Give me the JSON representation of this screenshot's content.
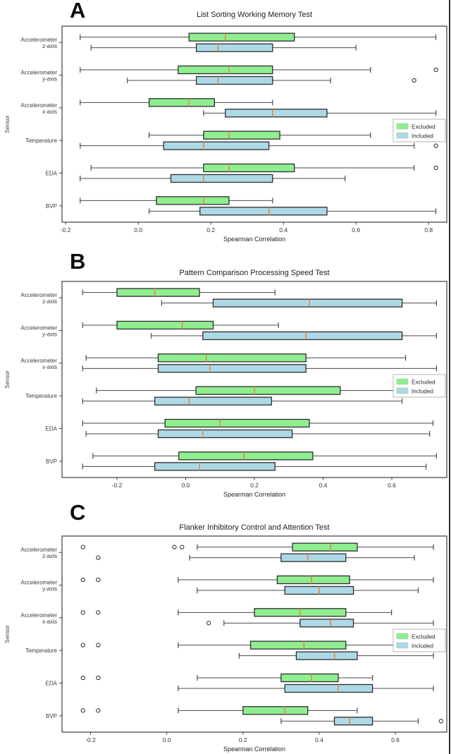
{
  "figure": {
    "description": "Three stacked horizontal grouped boxplot panels comparing Excluded vs Included groups of sensors",
    "panel_labels": [
      "A",
      "B",
      "C"
    ]
  },
  "colors": {
    "excluded_fill": "#90ee90",
    "included_fill": "#add8e6",
    "box_border": "#2d2d2d",
    "median": "#dd8a3c",
    "whisker": "#4a4a4a",
    "axis": "#3c3c3c",
    "legend_border": "#b5b5b5",
    "text": "#2b2b2b"
  },
  "chart_data": [
    {
      "panel_label": "A",
      "type": "boxplot",
      "orientation": "horizontal",
      "title": "List Sorting Working Memory Test",
      "xlabel": "Spearman Correlation",
      "ylabel": "Sensor",
      "xlim": [
        -0.21,
        0.85
      ],
      "xticks": [
        -0.2,
        0.0,
        0.2,
        0.4,
        0.6,
        0.8
      ],
      "xtick_labels": [
        "-0.2",
        "0.0",
        "0.2",
        "0.4",
        "0.6",
        "0.8"
      ],
      "grid": false,
      "categories": [
        [
          "Accelerometer",
          "z-axis"
        ],
        [
          "Accelerometer",
          "y-axis"
        ],
        [
          "Accelerometer",
          "x-axis"
        ],
        [
          "Temperature"
        ],
        [
          "EDA"
        ],
        [
          "BVP"
        ]
      ],
      "legend": {
        "position": "right",
        "entries": [
          "Excluded",
          "Included"
        ]
      },
      "series": [
        {
          "name": "Excluded",
          "color": "#90ee90",
          "boxes": [
            {
              "whislo": -0.16,
              "q1": 0.14,
              "med": 0.24,
              "q3": 0.43,
              "whishi": 0.82,
              "fliers": []
            },
            {
              "whislo": -0.16,
              "q1": 0.11,
              "med": 0.25,
              "q3": 0.37,
              "whishi": 0.64,
              "fliers": [
                0.82
              ]
            },
            {
              "whislo": -0.16,
              "q1": 0.03,
              "med": 0.14,
              "q3": 0.21,
              "whishi": 0.37,
              "fliers": []
            },
            {
              "whislo": 0.03,
              "q1": 0.18,
              "med": 0.25,
              "q3": 0.39,
              "whishi": 0.64,
              "fliers": []
            },
            {
              "whislo": -0.13,
              "q1": 0.18,
              "med": 0.25,
              "q3": 0.43,
              "whishi": 0.76,
              "fliers": [
                0.82
              ]
            },
            {
              "whislo": -0.16,
              "q1": 0.05,
              "med": 0.18,
              "q3": 0.25,
              "whishi": 0.37,
              "fliers": []
            }
          ]
        },
        {
          "name": "Included",
          "color": "#add8e6",
          "boxes": [
            {
              "whislo": -0.13,
              "q1": 0.16,
              "med": 0.22,
              "q3": 0.37,
              "whishi": 0.6,
              "fliers": []
            },
            {
              "whislo": -0.03,
              "q1": 0.16,
              "med": 0.22,
              "q3": 0.37,
              "whishi": 0.53,
              "fliers": [
                0.76
              ]
            },
            {
              "whislo": 0.18,
              "q1": 0.24,
              "med": 0.37,
              "q3": 0.52,
              "whishi": 0.82,
              "fliers": []
            },
            {
              "whislo": -0.16,
              "q1": 0.07,
              "med": 0.18,
              "q3": 0.36,
              "whishi": 0.76,
              "fliers": [
                0.82
              ]
            },
            {
              "whislo": -0.16,
              "q1": 0.09,
              "med": 0.18,
              "q3": 0.37,
              "whishi": 0.57,
              "fliers": []
            },
            {
              "whislo": 0.03,
              "q1": 0.17,
              "med": 0.36,
              "q3": 0.52,
              "whishi": 0.82,
              "fliers": []
            }
          ]
        }
      ]
    },
    {
      "panel_label": "B",
      "type": "boxplot",
      "orientation": "horizontal",
      "title": "Pattern Comparison Processing Speed Test",
      "xlabel": "Spearman Correlation",
      "ylabel": "Sensor",
      "xlim": [
        -0.36,
        0.76
      ],
      "xticks": [
        -0.2,
        0.0,
        0.2,
        0.4,
        0.6
      ],
      "xtick_labels": [
        "-0.2",
        "0.0",
        "0.2",
        "0.4",
        "0.6"
      ],
      "grid": false,
      "categories": [
        [
          "Accelerometer",
          "z-axis"
        ],
        [
          "Accelerometer",
          "y-axis"
        ],
        [
          "Accelerometer",
          "x-axis"
        ],
        [
          "Temperature"
        ],
        [
          "EDA"
        ],
        [
          "BVP"
        ]
      ],
      "legend": {
        "position": "right",
        "entries": [
          "Excluded",
          "Included"
        ]
      },
      "series": [
        {
          "name": "Excluded",
          "color": "#90ee90",
          "boxes": [
            {
              "whislo": -0.3,
              "q1": -0.2,
              "med": -0.09,
              "q3": 0.04,
              "whishi": 0.26,
              "fliers": []
            },
            {
              "whislo": -0.3,
              "q1": -0.2,
              "med": -0.01,
              "q3": 0.08,
              "whishi": 0.27,
              "fliers": []
            },
            {
              "whislo": -0.29,
              "q1": -0.08,
              "med": 0.06,
              "q3": 0.35,
              "whishi": 0.64,
              "fliers": []
            },
            {
              "whislo": -0.26,
              "q1": 0.03,
              "med": 0.2,
              "q3": 0.45,
              "whishi": 0.73,
              "fliers": []
            },
            {
              "whislo": -0.3,
              "q1": -0.06,
              "med": 0.1,
              "q3": 0.36,
              "whishi": 0.72,
              "fliers": []
            },
            {
              "whislo": -0.27,
              "q1": -0.02,
              "med": 0.17,
              "q3": 0.37,
              "whishi": 0.73,
              "fliers": []
            }
          ]
        },
        {
          "name": "Included",
          "color": "#add8e6",
          "boxes": [
            {
              "whislo": -0.07,
              "q1": 0.08,
              "med": 0.36,
              "q3": 0.63,
              "whishi": 0.73,
              "fliers": []
            },
            {
              "whislo": -0.1,
              "q1": 0.05,
              "med": 0.35,
              "q3": 0.63,
              "whishi": 0.73,
              "fliers": []
            },
            {
              "whislo": -0.3,
              "q1": -0.08,
              "med": 0.07,
              "q3": 0.35,
              "whishi": 0.73,
              "fliers": []
            },
            {
              "whislo": -0.3,
              "q1": -0.09,
              "med": 0.01,
              "q3": 0.25,
              "whishi": 0.63,
              "fliers": []
            },
            {
              "whislo": -0.29,
              "q1": -0.08,
              "med": 0.05,
              "q3": 0.31,
              "whishi": 0.71,
              "fliers": []
            },
            {
              "whislo": -0.3,
              "q1": -0.09,
              "med": 0.04,
              "q3": 0.26,
              "whishi": 0.7,
              "fliers": []
            }
          ]
        }
      ]
    },
    {
      "panel_label": "C",
      "type": "boxplot",
      "orientation": "horizontal",
      "title": "Flanker Inhibitory Control and Attention Test",
      "xlabel": "Spearman Correlation",
      "ylabel": "Sensor",
      "xlim": [
        -0.275,
        0.735
      ],
      "xticks": [
        -0.2,
        0.0,
        0.2,
        0.4,
        0.6
      ],
      "xtick_labels": [
        "-0.2",
        "0.0",
        "0.2",
        "0.4",
        "0.6"
      ],
      "grid": false,
      "categories": [
        [
          "Accelerometer",
          "z-axis"
        ],
        [
          "Accelerometer",
          "y-axis"
        ],
        [
          "Accelerometer",
          "x-axis"
        ],
        [
          "Temperature"
        ],
        [
          "EDA"
        ],
        [
          "BVP"
        ]
      ],
      "legend": {
        "position": "right",
        "entries": [
          "Excluded",
          "Included"
        ]
      },
      "series": [
        {
          "name": "Excluded",
          "color": "#90ee90",
          "boxes": [
            {
              "whislo": 0.08,
              "q1": 0.33,
              "med": 0.43,
              "q3": 0.5,
              "whishi": 0.7,
              "fliers": [
                -0.22,
                0.02,
                0.04
              ]
            },
            {
              "whislo": 0.03,
              "q1": 0.29,
              "med": 0.38,
              "q3": 0.48,
              "whishi": 0.7,
              "fliers": [
                -0.22,
                -0.18
              ]
            },
            {
              "whislo": 0.03,
              "q1": 0.23,
              "med": 0.35,
              "q3": 0.47,
              "whishi": 0.59,
              "fliers": [
                -0.22,
                -0.18
              ]
            },
            {
              "whislo": 0.03,
              "q1": 0.22,
              "med": 0.36,
              "q3": 0.47,
              "whishi": 0.62,
              "fliers": [
                -0.22,
                -0.18
              ]
            },
            {
              "whislo": 0.08,
              "q1": 0.3,
              "med": 0.38,
              "q3": 0.45,
              "whishi": 0.54,
              "fliers": [
                -0.22,
                -0.18
              ]
            },
            {
              "whislo": 0.03,
              "q1": 0.2,
              "med": 0.31,
              "q3": 0.37,
              "whishi": 0.5,
              "fliers": [
                -0.22,
                -0.18
              ]
            }
          ]
        },
        {
          "name": "Included",
          "color": "#add8e6",
          "boxes": [
            {
              "whislo": 0.06,
              "q1": 0.3,
              "med": 0.37,
              "q3": 0.47,
              "whishi": 0.65,
              "fliers": [
                -0.18
              ]
            },
            {
              "whislo": 0.08,
              "q1": 0.31,
              "med": 0.4,
              "q3": 0.49,
              "whishi": 0.66,
              "fliers": []
            },
            {
              "whislo": 0.15,
              "q1": 0.35,
              "med": 0.43,
              "q3": 0.49,
              "whishi": 0.7,
              "fliers": [
                0.11
              ]
            },
            {
              "whislo": 0.19,
              "q1": 0.34,
              "med": 0.44,
              "q3": 0.5,
              "whishi": 0.7,
              "fliers": []
            },
            {
              "whislo": 0.03,
              "q1": 0.31,
              "med": 0.45,
              "q3": 0.54,
              "whishi": 0.7,
              "fliers": []
            },
            {
              "whislo": 0.3,
              "q1": 0.44,
              "med": 0.48,
              "q3": 0.54,
              "whishi": 0.66,
              "fliers": [
                0.72
              ]
            }
          ]
        }
      ]
    }
  ]
}
